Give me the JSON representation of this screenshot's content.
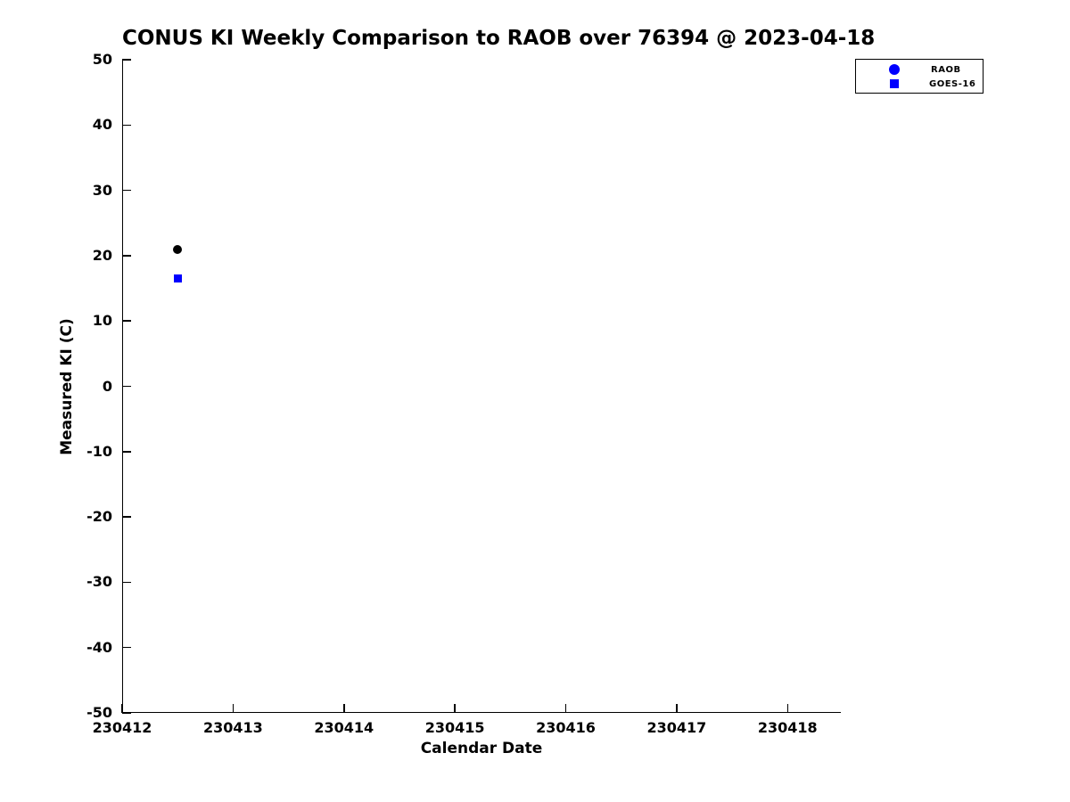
{
  "chart_data": {
    "type": "scatter",
    "title": "CONUS KI Weekly Comparison to RAOB over 76394 @ 2023-04-18",
    "xlabel": "Calendar Date",
    "ylabel": "Measured KI (C)",
    "xlim": [
      230412,
      230418.48
    ],
    "ylim": [
      -50,
      50
    ],
    "xticks": [
      230412,
      230413,
      230414,
      230415,
      230416,
      230417,
      230418
    ],
    "yticks": [
      50,
      40,
      30,
      20,
      10,
      0,
      -10,
      -20,
      -30,
      -40,
      -50
    ],
    "grid": false,
    "background_color": "#ffffff",
    "axis_color": "#000000",
    "legend": {
      "position": "top-right-outside",
      "entries": [
        {
          "label": "RAOB",
          "marker": "circle",
          "color": "#0000ff"
        },
        {
          "label": "GOES-16",
          "marker": "square",
          "color": "#0000ff"
        }
      ]
    },
    "series": [
      {
        "name": "RAOB",
        "marker": "circle",
        "color": "#000000",
        "marker_size": 10,
        "points": [
          {
            "x": 230412.5,
            "y": 20.9
          }
        ]
      },
      {
        "name": "GOES-16",
        "marker": "square",
        "color": "#0000ff",
        "marker_size": 9,
        "points": [
          {
            "x": 230412.5,
            "y": 16.5
          }
        ]
      }
    ]
  }
}
